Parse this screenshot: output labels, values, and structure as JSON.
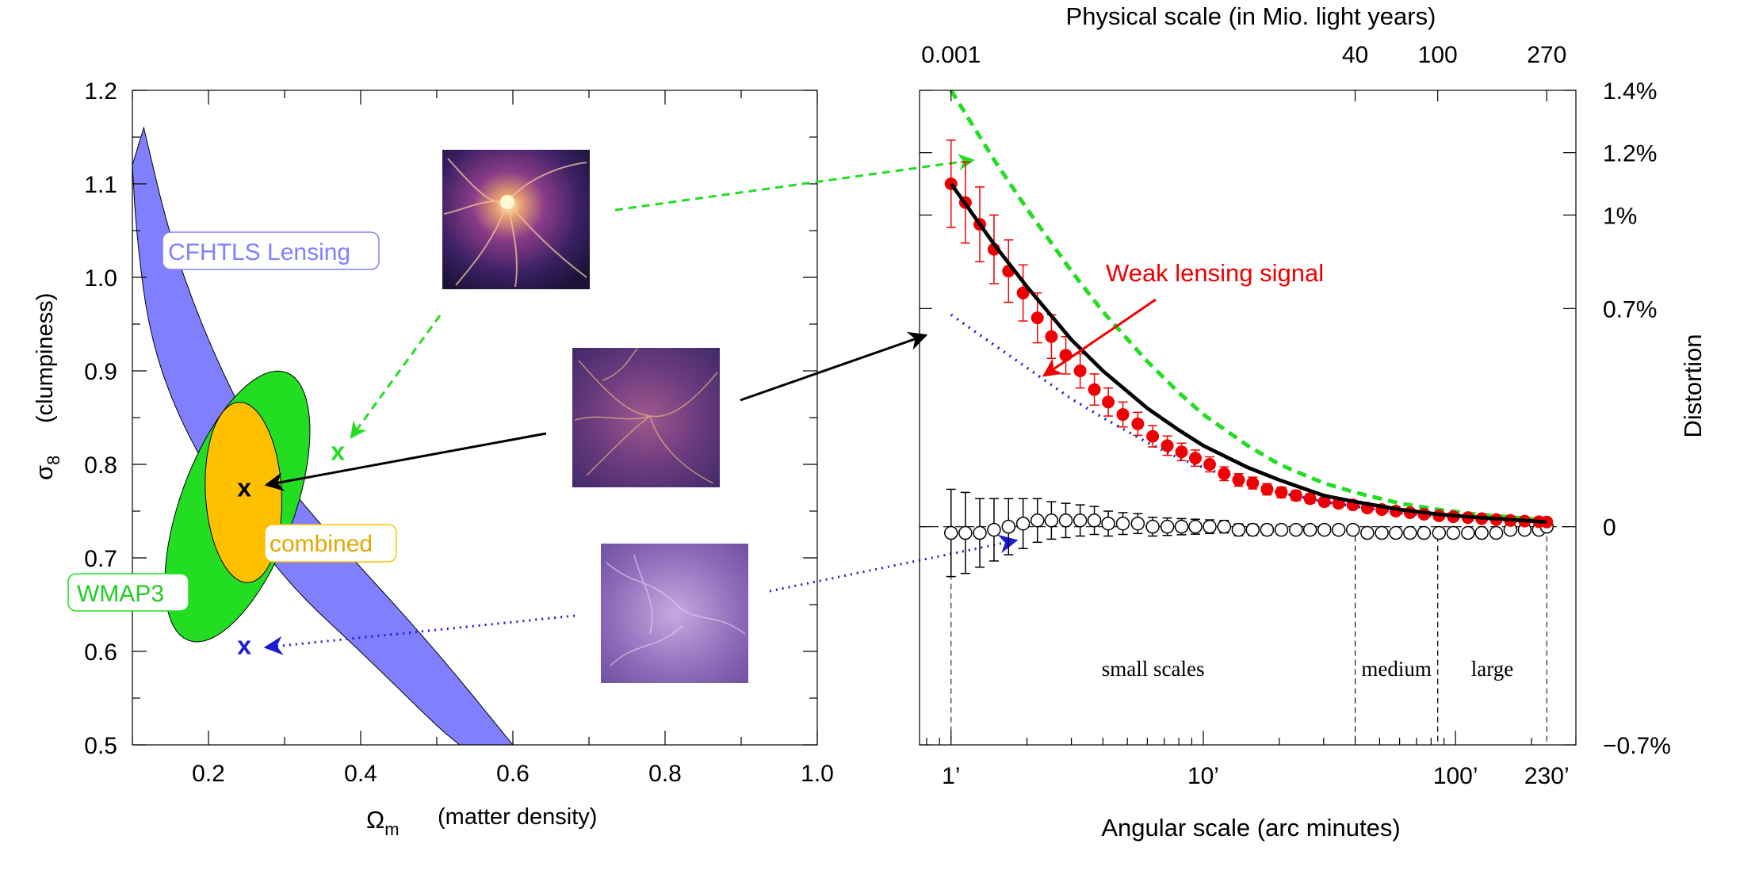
{
  "colors": {
    "lensing_band": "#8080ff",
    "wmap3": "#22dd22",
    "combined": "#ffc000",
    "signal": "#ee0000",
    "high_model": "#22dd22",
    "low_model": "#1a1ad0",
    "null_test": "#000000"
  },
  "chart_data": [
    {
      "type": "scatter",
      "xlabel": "Ω",
      "xlabel_sub": "m",
      "xlabel_desc": "(matter density)",
      "ylabel": "σ",
      "ylabel_sub": "8",
      "ylabel_desc": "(clumpiness)",
      "xlim": [
        0.1,
        1.0
      ],
      "ylim": [
        0.5,
        1.2
      ],
      "xticks": [
        "0.2",
        "0.4",
        "0.6",
        "0.8",
        "1.0"
      ],
      "yticks": [
        "0.5",
        "0.6",
        "0.7",
        "0.8",
        "0.9",
        "1.0",
        "1.1",
        "1.2"
      ],
      "regions": [
        {
          "name": "CFHTLS Lensing",
          "shape": "curved band",
          "upper_edge": [
            [
              0.115,
              1.16
            ],
            [
              0.15,
              1.04
            ],
            [
              0.2,
              0.93
            ],
            [
              0.26,
              0.83
            ],
            [
              0.32,
              0.76
            ],
            [
              0.4,
              0.69
            ],
            [
              0.5,
              0.6
            ],
            [
              0.6,
              0.5
            ]
          ],
          "lower_edge": [
            [
              0.1,
              1.12
            ],
            [
              0.105,
              1.05
            ],
            [
              0.12,
              0.95
            ],
            [
              0.15,
              0.87
            ],
            [
              0.2,
              0.79
            ],
            [
              0.26,
              0.72
            ],
            [
              0.32,
              0.66
            ],
            [
              0.4,
              0.6
            ],
            [
              0.5,
              0.52
            ],
            [
              0.53,
              0.5
            ]
          ]
        },
        {
          "name": "WMAP3",
          "center": [
            0.238,
            0.755
          ],
          "shape": "tilted ellipse"
        },
        {
          "name": "combined",
          "center": [
            0.246,
            0.77
          ],
          "shape": "ellipse"
        }
      ],
      "markers": [
        {
          "label": "x",
          "x": 0.247,
          "y": 0.776,
          "color": "#000000"
        },
        {
          "label": "x",
          "x": 0.37,
          "y": 0.815,
          "color": "#22dd22"
        },
        {
          "label": "x",
          "x": 0.247,
          "y": 0.607,
          "color": "#1a1ad0"
        }
      ],
      "region_labels": {
        "lensing": "CFHTLS Lensing",
        "wmap": "WMAP3",
        "combined": "combined"
      },
      "x_marker_text": "x"
    },
    {
      "type": "line",
      "xlabel": "Angular scale (arc minutes)",
      "x2label": "Physical scale (in Mio. light years)",
      "ylabel_right": "Distortion",
      "x_scale": "log",
      "xlim": [
        0.75,
        300
      ],
      "ylim": [
        -0.7,
        1.4
      ],
      "xticks": [
        {
          "v": 1,
          "label": "1’"
        },
        {
          "v": 10,
          "label": "10’"
        },
        {
          "v": 100,
          "label": "100’"
        },
        {
          "v": 230,
          "label": "230’"
        }
      ],
      "x2ticks": [
        {
          "v": 1,
          "label": "0.001"
        },
        {
          "v": 40,
          "label": "40"
        },
        {
          "v": 85,
          "label": "100"
        },
        {
          "v": 230,
          "label": "270"
        }
      ],
      "yticks": [
        {
          "v": 1.4,
          "label": "1.4%"
        },
        {
          "v": 1.2,
          "label": "1.2%"
        },
        {
          "v": 1.0,
          "label": "1%"
        },
        {
          "v": 0.7,
          "label": "0.7%"
        },
        {
          "v": 0,
          "label": "0"
        },
        {
          "v": -0.7,
          "label": "−0.7%"
        }
      ],
      "signal_label": "Weak lensing signal",
      "regions": [
        {
          "label": "small scales",
          "from": 1,
          "to": 40
        },
        {
          "label": "medium",
          "from": 40,
          "to": 85
        },
        {
          "label": "large",
          "from": 85,
          "to": 230
        }
      ],
      "series": [
        {
          "kind": "model-high",
          "x": [
            1,
            1.5,
            2,
            3,
            4,
            6,
            8,
            10,
            15,
            20,
            30,
            40,
            60,
            85,
            120,
            170,
            230
          ],
          "y": [
            1.4,
            1.17,
            1.02,
            0.82,
            0.69,
            0.53,
            0.43,
            0.36,
            0.26,
            0.2,
            0.14,
            0.11,
            0.075,
            0.055,
            0.04,
            0.03,
            0.02
          ]
        },
        {
          "kind": "model-low",
          "x": [
            1,
            1.5,
            2,
            3,
            4,
            6,
            8,
            10,
            15,
            20,
            30,
            40,
            60,
            85,
            120,
            170,
            230
          ],
          "y": [
            0.68,
            0.58,
            0.51,
            0.41,
            0.35,
            0.27,
            0.22,
            0.19,
            0.14,
            0.11,
            0.08,
            0.065,
            0.045,
            0.033,
            0.025,
            0.018,
            0.013
          ]
        },
        {
          "kind": "best-fit",
          "x": [
            1,
            1.5,
            2,
            3,
            4,
            6,
            8,
            10,
            15,
            20,
            30,
            40,
            60,
            85,
            120,
            170,
            230
          ],
          "y": [
            1.1,
            0.9,
            0.77,
            0.6,
            0.5,
            0.38,
            0.31,
            0.26,
            0.19,
            0.15,
            0.1,
            0.08,
            0.055,
            0.04,
            0.03,
            0.022,
            0.015
          ]
        },
        {
          "kind": "signal",
          "x": [
            1,
            1.14,
            1.3,
            1.48,
            1.69,
            1.93,
            2.2,
            2.5,
            2.85,
            3.25,
            3.7,
            4.2,
            4.8,
            5.5,
            6.3,
            7.2,
            8.2,
            9.3,
            10.6,
            12.1,
            13.8,
            15.7,
            17.9,
            20.4,
            23.3,
            26.5,
            30.2,
            34.4,
            39.2,
            44.7,
            51,
            58,
            66,
            75,
            86,
            98,
            112,
            127,
            145,
            165,
            188,
            214,
            230
          ],
          "y": [
            1.1,
            1.04,
            0.97,
            0.89,
            0.82,
            0.75,
            0.67,
            0.61,
            0.55,
            0.5,
            0.44,
            0.4,
            0.36,
            0.33,
            0.29,
            0.26,
            0.24,
            0.22,
            0.2,
            0.17,
            0.15,
            0.14,
            0.12,
            0.11,
            0.1,
            0.09,
            0.08,
            0.075,
            0.07,
            0.06,
            0.055,
            0.05,
            0.045,
            0.04,
            0.035,
            0.032,
            0.029,
            0.026,
            0.023,
            0.02,
            0.018,
            0.016,
            0.015
          ],
          "err": [
            0.14,
            0.13,
            0.12,
            0.11,
            0.1,
            0.09,
            0.08,
            0.07,
            0.06,
            0.055,
            0.05,
            0.045,
            0.04,
            0.037,
            0.034,
            0.031,
            0.028,
            0.026,
            0.024,
            0.022,
            0.02,
            0.019,
            0.018,
            0.017,
            0.016,
            0.015,
            0.014,
            0.013,
            0.013,
            0.012,
            0.012,
            0.011,
            0.011,
            0.01,
            0.01,
            0.01,
            0.01,
            0.01,
            0.01,
            0.01,
            0.01,
            0.01,
            0.01
          ]
        },
        {
          "kind": "null-test",
          "x": [
            1,
            1.14,
            1.3,
            1.48,
            1.69,
            1.93,
            2.2,
            2.5,
            2.85,
            3.25,
            3.7,
            4.2,
            4.8,
            5.5,
            6.3,
            7.2,
            8.2,
            9.3,
            10.6,
            12.1,
            13.8,
            15.7,
            17.9,
            20.4,
            23.3,
            26.5,
            30.2,
            34.4,
            39.2,
            44.7,
            51,
            58,
            66,
            75,
            86,
            98,
            112,
            127,
            145,
            165,
            188,
            214,
            230
          ],
          "y": [
            -0.02,
            -0.02,
            -0.02,
            -0.01,
            0.0,
            0.01,
            0.02,
            0.02,
            0.02,
            0.02,
            0.02,
            0.01,
            0.01,
            0.01,
            0.0,
            0.0,
            0.0,
            0.0,
            0.0,
            0.0,
            -0.01,
            -0.01,
            -0.01,
            -0.01,
            -0.01,
            -0.01,
            -0.01,
            -0.01,
            -0.01,
            -0.02,
            -0.02,
            -0.02,
            -0.02,
            -0.02,
            -0.02,
            -0.02,
            -0.02,
            -0.02,
            -0.02,
            -0.01,
            -0.01,
            -0.01,
            0.0
          ],
          "err": [
            0.14,
            0.13,
            0.11,
            0.1,
            0.09,
            0.08,
            0.07,
            0.06,
            0.055,
            0.05,
            0.045,
            0.04,
            0.035,
            0.032,
            0.03,
            0.028,
            0.026,
            0.024,
            0.022,
            0.02,
            0.019,
            0.018,
            0.017,
            0.016,
            0.015,
            0.014,
            0.013,
            0.012,
            0.012,
            0.011,
            0.011,
            0.011,
            0.01,
            0.01,
            0.01,
            0.01,
            0.01,
            0.01,
            0.01,
            0.01,
            0.01,
            0.01,
            0.01
          ]
        }
      ]
    }
  ]
}
